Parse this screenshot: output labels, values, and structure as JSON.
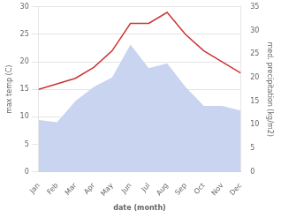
{
  "chart_data": {
    "type": "line",
    "categories": [
      "Jan",
      "Feb",
      "Mar",
      "Apr",
      "May",
      "Jun",
      "Jul",
      "Aug",
      "Sep",
      "Oct",
      "Nov",
      "Dec"
    ],
    "series": [
      {
        "type": "area",
        "axis": "y2",
        "color": "#c8d4f0",
        "values": [
          11.0,
          10.5,
          15.0,
          18.0,
          20.0,
          27.0,
          22.0,
          23.0,
          18.0,
          14.0,
          14.0,
          13.0
        ]
      },
      {
        "type": "line",
        "color": "#cc3333",
        "values": [
          15.0,
          16.0,
          17.0,
          19.0,
          22.0,
          27.0,
          27.0,
          29.0,
          25.0,
          22.0,
          20.0,
          18.0
        ]
      }
    ],
    "xlabel": "date (month)",
    "ylabel": "max temp (C)",
    "y2label": "med. precipitation (kg/m2)",
    "ylim": [
      0,
      30
    ],
    "yticks": [
      0,
      5,
      10,
      15,
      20,
      25,
      30
    ],
    "y2lim": [
      0,
      35
    ],
    "y2ticks": [
      0,
      5,
      10,
      15,
      20,
      25,
      30,
      35
    ],
    "grid": true
  }
}
